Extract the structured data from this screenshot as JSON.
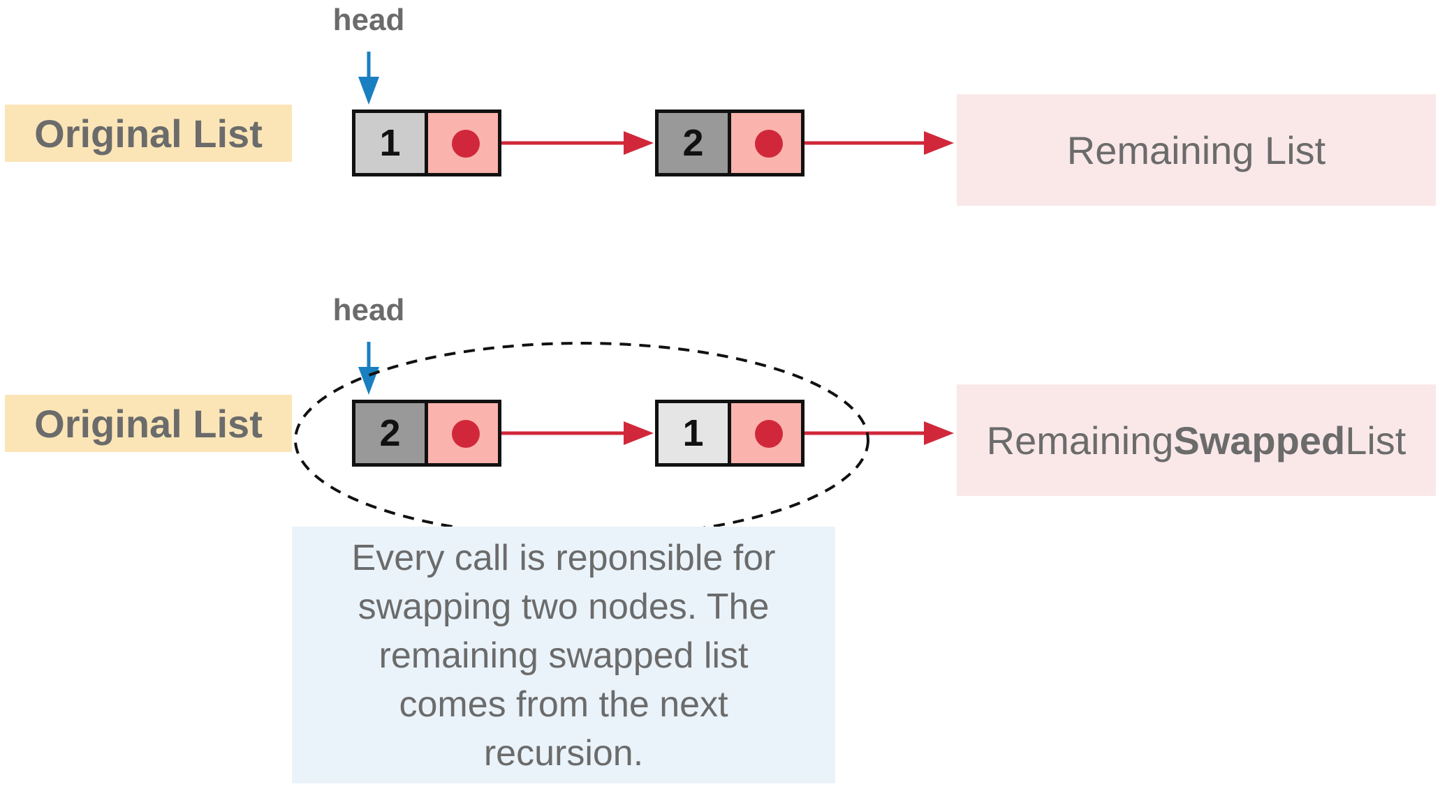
{
  "colors": {
    "node_light": "#cccccc",
    "node_dark": "#999999",
    "node_lighter": "#e5e5e5",
    "pointer_fill": "#fbb3ad",
    "pointer_dot": "#d0283a",
    "arrow_red": "#d0283a",
    "head_arrow_blue": "#1a7fc1",
    "label_bg": "#fbe5b6",
    "remaining_bg": "#fae8e9",
    "note_bg": "#eaf3fa",
    "text_gray": "#6b6b6b"
  },
  "top": {
    "label": "Original List",
    "head": "head",
    "node1_value": "1",
    "node2_value": "2",
    "remaining": "Remaining List"
  },
  "bottom": {
    "label": "Original List",
    "head": "head",
    "node1_value": "2",
    "node2_value": "1",
    "remaining_prefix": "Remaining ",
    "remaining_bold": "Swapped",
    "remaining_suffix": " List"
  },
  "note": {
    "line1": "Every call is reponsible for",
    "line2": "swapping two nodes. The",
    "line3": "remaining swapped list",
    "line4": "comes from the next",
    "line5": "recursion."
  }
}
